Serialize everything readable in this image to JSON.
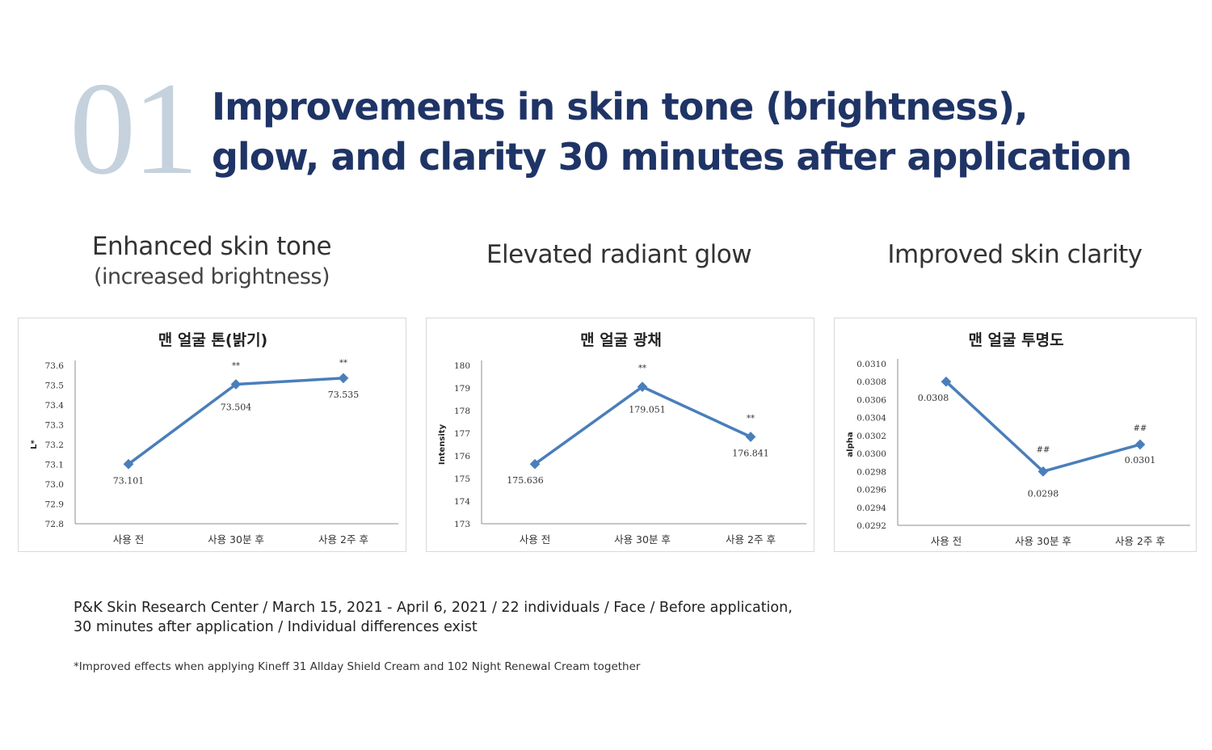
{
  "header": {
    "number": "01",
    "title_line1": "Improvements in skin tone (brightness),",
    "title_line2": "glow, and clarity 30 minutes after application"
  },
  "sections": [
    {
      "title": "Enhanced skin tone",
      "note": "(increased brightness)"
    },
    {
      "title": "Elevated radiant glow",
      "note": ""
    },
    {
      "title": "Improved skin clarity",
      "note": ""
    }
  ],
  "chart_data": [
    {
      "type": "line",
      "title": "맨 얼굴 톤(밝기)",
      "ylabel": "L*",
      "xlabel": "",
      "categories": [
        "사용 전",
        "사용 30분 후",
        "사용 2주 후"
      ],
      "values": [
        73.101,
        73.504,
        73.535
      ],
      "data_labels": [
        "73.101",
        "73.504",
        "73.535"
      ],
      "significance": [
        "",
        "**",
        "**"
      ],
      "ylim": [
        72.8,
        73.6
      ],
      "yticks": [
        "72.8",
        "72.9",
        "73.0",
        "73.1",
        "73.2",
        "73.3",
        "73.4",
        "73.5",
        "73.6"
      ],
      "color": "#4a7ebb",
      "grid": false
    },
    {
      "type": "line",
      "title": "맨 얼굴 광채",
      "ylabel": "Intensity",
      "xlabel": "",
      "categories": [
        "사용 전",
        "사용 30분 후",
        "사용 2주 후"
      ],
      "values": [
        175.636,
        179.051,
        176.841
      ],
      "data_labels": [
        "175.636",
        "179.051",
        "176.841"
      ],
      "significance": [
        "",
        "**",
        "**"
      ],
      "ylim": [
        173,
        180
      ],
      "yticks": [
        "173",
        "174",
        "175",
        "176",
        "177",
        "178",
        "179",
        "180"
      ],
      "color": "#4a7ebb",
      "grid": false
    },
    {
      "type": "line",
      "title": "맨 얼굴 투명도",
      "ylabel": "alpha",
      "xlabel": "",
      "categories": [
        "사용 전",
        "사용 30분 후",
        "사용 2주 후"
      ],
      "values": [
        0.0308,
        0.0298,
        0.0301
      ],
      "data_labels": [
        "0.0308",
        "0.0298",
        "0.0301"
      ],
      "significance": [
        "",
        "##",
        "##"
      ],
      "ylim": [
        0.0292,
        0.031
      ],
      "yticks": [
        "0.0292",
        "0.0294",
        "0.0296",
        "0.0298",
        "0.0300",
        "0.0302",
        "0.0304",
        "0.0306",
        "0.0308",
        "0.0310"
      ],
      "color": "#4a7ebb",
      "grid": false
    }
  ],
  "source": {
    "line1": "P&K Skin Research Center / March 15, 2021 - April 6, 2021 / 22 individuals / Face / Before application,",
    "line2": "30 minutes after application / Individual differences exist"
  },
  "footnote": "*Improved effects when applying Kineff 31 Allday Shield Cream and 102 Night Renewal Cream together"
}
